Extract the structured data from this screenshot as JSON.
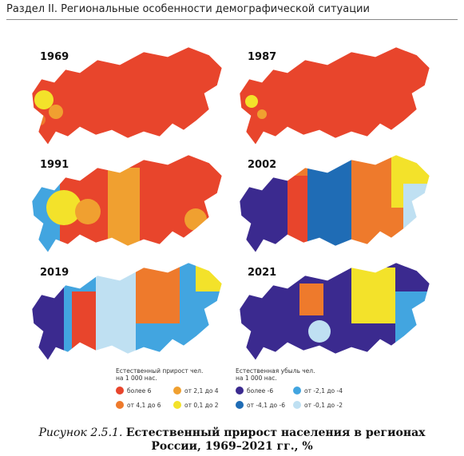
{
  "header": {
    "title": "Раздел II. Региональные особенности демографической ситуации"
  },
  "maps": [
    {
      "year": "1969"
    },
    {
      "year": "1987"
    },
    {
      "year": "1991"
    },
    {
      "year": "2002"
    },
    {
      "year": "2019"
    },
    {
      "year": "2021"
    }
  ],
  "legend": {
    "groups": [
      {
        "title": "Естественный прирост чел. на 1 000 нас.",
        "items": [
          {
            "label": "более 6",
            "color": "#e8452c"
          },
          {
            "label": "от 4,1 до 6",
            "color": "#ee7a2c"
          },
          {
            "label": "от 2,1 до 4",
            "color": "#f0a030"
          },
          {
            "label": "от 0,1 до 2",
            "color": "#f3e22a"
          }
        ]
      },
      {
        "title": "Естественная убыль чел. на 1 000 нас.",
        "items": [
          {
            "label": "более -6",
            "color": "#3b2a8f"
          },
          {
            "label": "от -4,1 до -6",
            "color": "#1f6cb5"
          },
          {
            "label": "от -2,1 до -4",
            "color": "#42a5e0"
          },
          {
            "label": "от -0,1 до -2",
            "color": "#bfe0f2"
          }
        ]
      }
    ]
  },
  "caption": {
    "label": "Рисунок 2.5.1.",
    "text": "Естественный прирост населения в регионах России, 1969–2021 гг., %"
  }
}
